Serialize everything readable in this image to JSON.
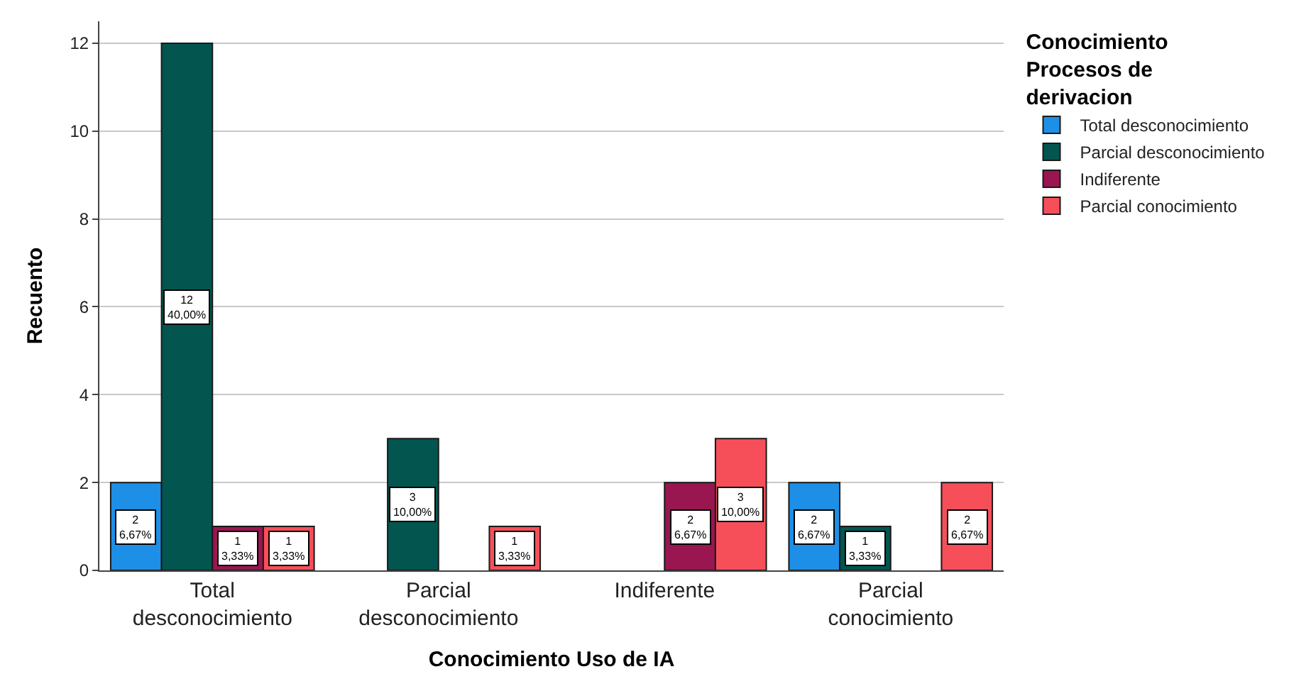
{
  "chart_data": {
    "type": "bar",
    "xlabel": "Conocimiento Uso de IA",
    "ylabel": "Recuento",
    "legend_title": "Conocimiento Procesos de derivacion",
    "categories": [
      "Total desconocimiento",
      "Parcial desconocimiento",
      "Indiferente",
      "Parcial conocimiento"
    ],
    "series": [
      {
        "name": "Total desconocimiento",
        "color": "#1e8fe6",
        "values": [
          2,
          null,
          null,
          2
        ],
        "value_labels": [
          "2\n6,67%",
          null,
          null,
          "2\n6,67%"
        ]
      },
      {
        "name": "Parcial desconocimiento",
        "color": "#02564f",
        "values": [
          12,
          3,
          null,
          1
        ],
        "value_labels": [
          "12\n40,00%",
          "3\n10,00%",
          null,
          "1\n3,33%"
        ]
      },
      {
        "name": "Indiferente",
        "color": "#9a1650",
        "values": [
          1,
          null,
          2,
          null
        ],
        "value_labels": [
          "1\n3,33%",
          null,
          "2\n6,67%",
          null
        ]
      },
      {
        "name": "Parcial conocimiento",
        "color": "#f74f5a",
        "values": [
          1,
          1,
          3,
          2
        ],
        "value_labels": [
          "1\n3,33%",
          "1\n3,33%",
          "3\n10,00%",
          "2\n6,67%"
        ]
      }
    ],
    "ylim": [
      0,
      12.5
    ],
    "yticks": [
      0,
      2,
      4,
      6,
      8,
      10,
      12
    ],
    "grid": "y",
    "legend": "top right"
  }
}
